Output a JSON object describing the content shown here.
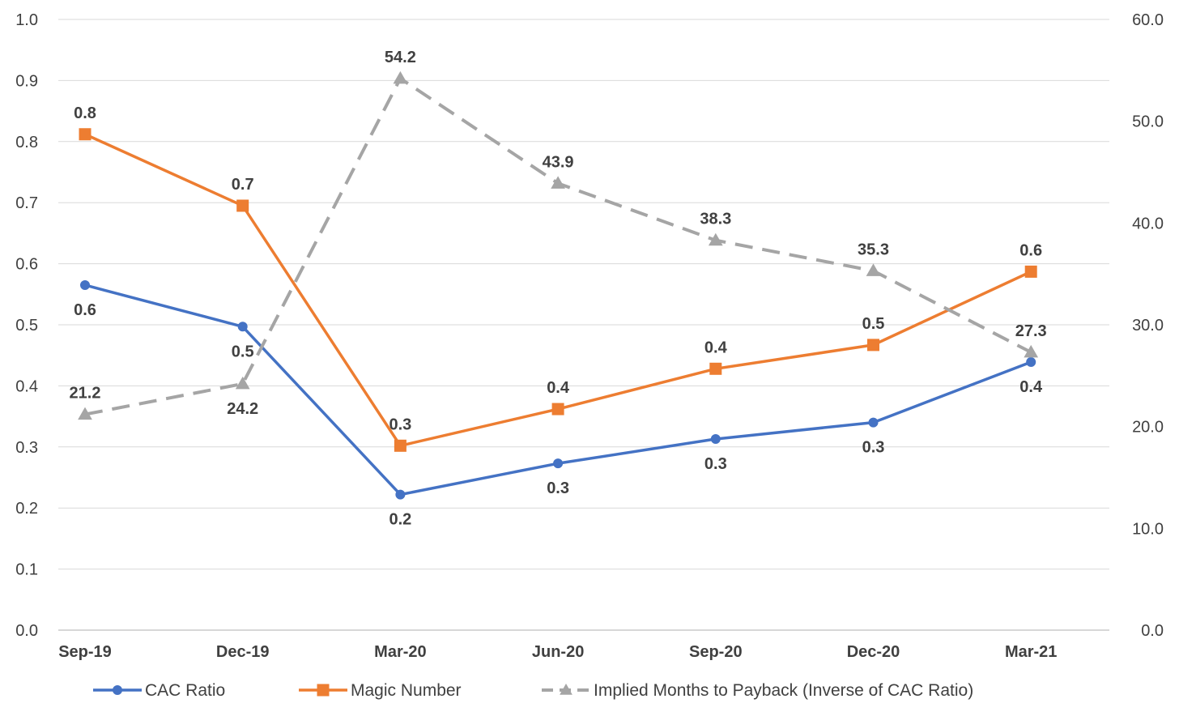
{
  "chart_data": {
    "type": "line",
    "categories": [
      "Sep-19",
      "Dec-19",
      "Mar-20",
      "Jun-20",
      "Sep-20",
      "Dec-20",
      "Mar-21"
    ],
    "title": "",
    "xlabel": "",
    "ylabel": "",
    "ylim": [
      0,
      1.0
    ],
    "y2lim": [
      0,
      60
    ],
    "grid": true,
    "legend_position": "bottom",
    "series": [
      {
        "name": "CAC Ratio",
        "axis": "left",
        "values": [
          0.565,
          0.497,
          0.222,
          0.273,
          0.313,
          0.34,
          0.439
        ],
        "labels": [
          "0.6",
          "0.5",
          "0.2",
          "0.3",
          "0.3",
          "0.3",
          "0.4"
        ],
        "color": "#4472C4",
        "marker": "circle",
        "dash": "solid"
      },
      {
        "name": "Magic Number",
        "axis": "left",
        "values": [
          0.812,
          0.695,
          0.302,
          0.362,
          0.428,
          0.467,
          0.587
        ],
        "labels": [
          "0.8",
          "0.7",
          "0.3",
          "0.4",
          "0.4",
          "0.5",
          "0.6"
        ],
        "color": "#ED7D31",
        "marker": "square",
        "dash": "solid"
      },
      {
        "name": "Implied Months to Payback (Inverse of CAC Ratio)",
        "axis": "right",
        "values": [
          21.2,
          24.2,
          54.2,
          43.9,
          38.3,
          35.3,
          27.3
        ],
        "labels": [
          "21.2",
          "24.2",
          "54.2",
          "43.9",
          "38.3",
          "35.3",
          "27.3"
        ],
        "color": "#A5A5A5",
        "marker": "triangle",
        "dash": "dashed"
      }
    ],
    "y_ticks": [
      "0.0",
      "0.1",
      "0.2",
      "0.3",
      "0.4",
      "0.5",
      "0.6",
      "0.7",
      "0.8",
      "0.9",
      "1.0"
    ],
    "y2_ticks": [
      "0.0",
      "10.0",
      "20.0",
      "30.0",
      "40.0",
      "50.0",
      "60.0"
    ]
  }
}
